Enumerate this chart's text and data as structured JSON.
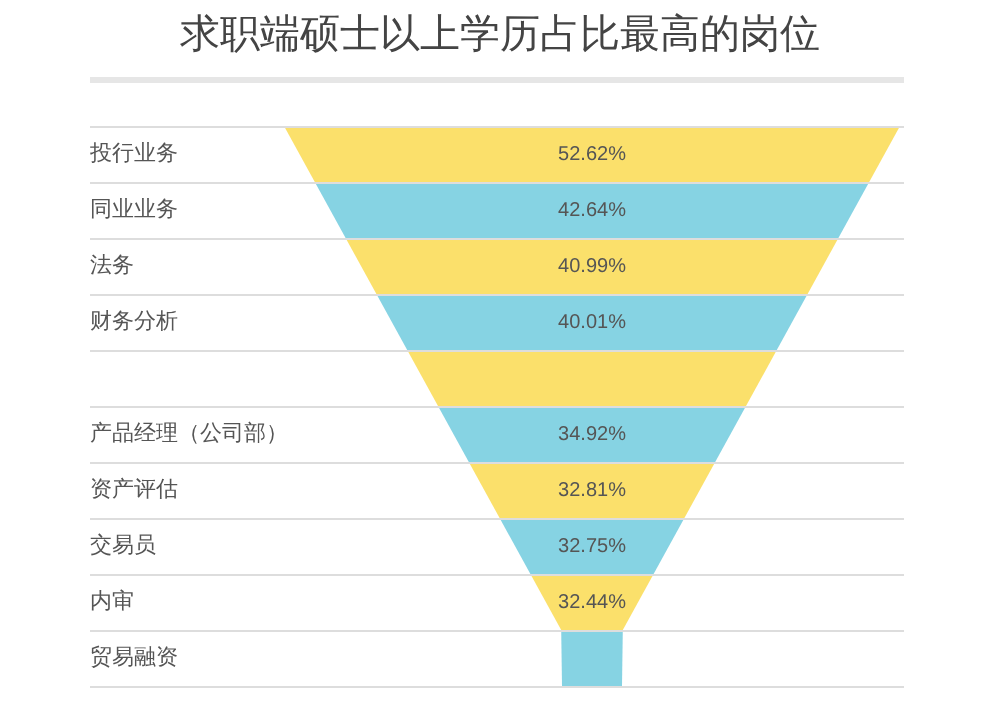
{
  "chart_data": {
    "type": "other",
    "title": "求职端硕士以上学历占比最高的岗位",
    "categories": [
      "投行业务",
      "同业业务",
      "法务",
      "财务分析",
      null,
      "产品经理（公司部）",
      "资产评估",
      "交易员",
      "内审",
      "贸易融资"
    ],
    "values": [
      52.62,
      42.64,
      40.99,
      40.01,
      null,
      34.92,
      32.81,
      32.75,
      32.44,
      null
    ],
    "value_labels": [
      "52.62%",
      "42.64%",
      "40.99%",
      "40.01%",
      null,
      "34.92%",
      "32.81%",
      "32.75%",
      "32.44%",
      null
    ],
    "colors": [
      "#fbe06b",
      "#86d3e3",
      "#fbe06b",
      "#86d3e3",
      "#fbe06b",
      "#86d3e3",
      "#fbe06b",
      "#86d3e3",
      "#fbe06b",
      "#86d3e3"
    ]
  }
}
